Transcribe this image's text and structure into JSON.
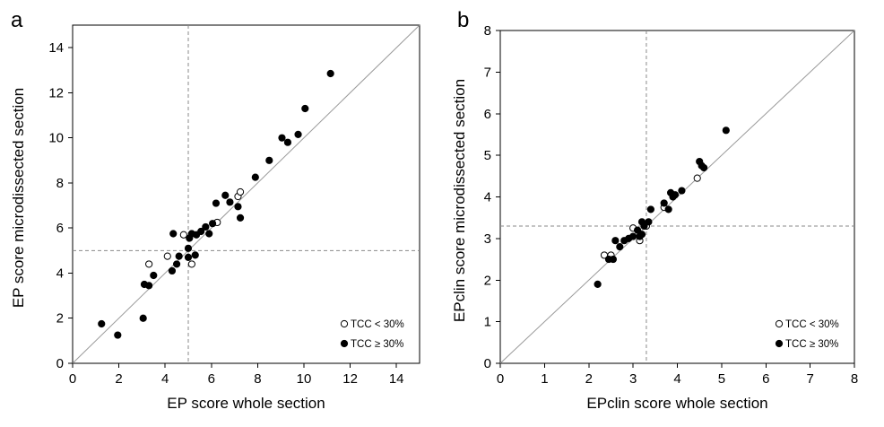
{
  "chart_data": [
    {
      "type": "scatter",
      "panel_label": "a",
      "xlabel": "EP score whole section",
      "ylabel": "EP score microdissected section",
      "xlim": [
        0,
        15
      ],
      "ylim": [
        0,
        15
      ],
      "xticks": [
        0,
        2,
        4,
        6,
        8,
        10,
        12,
        14
      ],
      "yticks": [
        0,
        2,
        4,
        6,
        8,
        10,
        12,
        14
      ],
      "threshold": {
        "x": 5,
        "y": 5
      },
      "identity_line": true,
      "legend": {
        "position": "bottom-right",
        "entries": [
          "TCC < 30%",
          "TCC ≥ 30%"
        ]
      },
      "series": [
        {
          "name": "TCC < 30%",
          "marker": "open-circle",
          "points": [
            [
              3.3,
              4.4
            ],
            [
              4.1,
              4.75
            ],
            [
              4.8,
              5.7
            ],
            [
              5.15,
              4.4
            ],
            [
              6.25,
              6.25
            ],
            [
              7.15,
              7.4
            ],
            [
              7.25,
              7.6
            ]
          ]
        },
        {
          "name": "TCC ≥ 30%",
          "marker": "filled-circle",
          "points": [
            [
              1.25,
              1.75
            ],
            [
              1.95,
              1.25
            ],
            [
              3.05,
              2.0
            ],
            [
              3.1,
              3.5
            ],
            [
              3.3,
              3.45
            ],
            [
              3.5,
              3.9
            ],
            [
              4.3,
              4.1
            ],
            [
              4.35,
              5.75
            ],
            [
              4.5,
              4.4
            ],
            [
              4.6,
              4.75
            ],
            [
              5.0,
              5.1
            ],
            [
              5.0,
              4.7
            ],
            [
              5.05,
              5.55
            ],
            [
              5.15,
              5.75
            ],
            [
              5.3,
              4.8
            ],
            [
              5.35,
              5.7
            ],
            [
              5.55,
              5.85
            ],
            [
              5.75,
              6.05
            ],
            [
              5.9,
              5.75
            ],
            [
              6.05,
              6.2
            ],
            [
              6.2,
              7.1
            ],
            [
              6.6,
              7.45
            ],
            [
              6.8,
              7.15
            ],
            [
              7.15,
              6.95
            ],
            [
              7.25,
              6.45
            ],
            [
              7.9,
              8.25
            ],
            [
              8.5,
              9.0
            ],
            [
              9.05,
              10.0
            ],
            [
              9.3,
              9.8
            ],
            [
              9.75,
              10.15
            ],
            [
              10.05,
              11.3
            ],
            [
              11.15,
              12.85
            ]
          ]
        }
      ]
    },
    {
      "type": "scatter",
      "panel_label": "b",
      "xlabel": "EPclin score whole section",
      "ylabel": "EPclin score microdissected section",
      "xlim": [
        0,
        8
      ],
      "ylim": [
        0,
        8
      ],
      "xticks": [
        0,
        1,
        2,
        3,
        4,
        5,
        6,
        7,
        8
      ],
      "yticks": [
        0,
        1,
        2,
        3,
        4,
        5,
        6,
        7,
        8
      ],
      "threshold": {
        "x": 3.3,
        "y": 3.3
      },
      "identity_line": true,
      "legend": {
        "position": "bottom-right",
        "entries": [
          "TCC < 30%",
          "TCC ≥ 30%"
        ]
      },
      "series": [
        {
          "name": "TCC < 30%",
          "marker": "open-circle",
          "points": [
            [
              2.35,
              2.6
            ],
            [
              2.5,
              2.6
            ],
            [
              3.0,
              3.25
            ],
            [
              3.15,
              2.95
            ],
            [
              3.3,
              3.3
            ],
            [
              3.7,
              3.75
            ],
            [
              4.45,
              4.45
            ]
          ]
        },
        {
          "name": "TCC ≥ 30%",
          "marker": "filled-circle",
          "points": [
            [
              2.2,
              1.9
            ],
            [
              2.45,
              2.5
            ],
            [
              2.55,
              2.5
            ],
            [
              2.6,
              2.95
            ],
            [
              2.7,
              2.8
            ],
            [
              2.8,
              2.95
            ],
            [
              2.9,
              3.0
            ],
            [
              3.0,
              3.05
            ],
            [
              3.1,
              3.2
            ],
            [
              3.15,
              3.05
            ],
            [
              3.2,
              3.4
            ],
            [
              3.2,
              3.1
            ],
            [
              3.25,
              3.3
            ],
            [
              3.35,
              3.4
            ],
            [
              3.4,
              3.7
            ],
            [
              3.7,
              3.85
            ],
            [
              3.8,
              3.7
            ],
            [
              3.85,
              4.1
            ],
            [
              3.9,
              4.0
            ],
            [
              3.95,
              4.05
            ],
            [
              4.1,
              4.15
            ],
            [
              4.5,
              4.85
            ],
            [
              4.55,
              4.75
            ],
            [
              4.6,
              4.7
            ],
            [
              5.1,
              5.6
            ]
          ]
        }
      ]
    }
  ]
}
